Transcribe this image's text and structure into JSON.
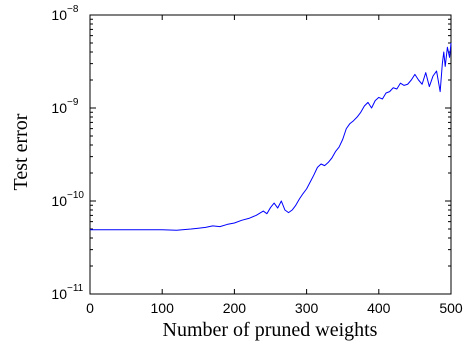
{
  "chart_data": {
    "type": "line",
    "xlabel": "Number of pruned weights",
    "ylabel": "Test error",
    "xlim": [
      0,
      500
    ],
    "ylim": [
      1e-11,
      1e-08
    ],
    "yscale": "log",
    "grid": false,
    "x_ticks": [
      {
        "value": 0,
        "label": "0"
      },
      {
        "value": 100,
        "label": "100"
      },
      {
        "value": 200,
        "label": "200"
      },
      {
        "value": 300,
        "label": "300"
      },
      {
        "value": 400,
        "label": "400"
      },
      {
        "value": 500,
        "label": "500"
      }
    ],
    "y_ticks": [
      {
        "value": 1e-11,
        "base": "10",
        "exp": "−11"
      },
      {
        "value": 1e-10,
        "base": "10",
        "exp": "−10"
      },
      {
        "value": 1e-09,
        "base": "10",
        "exp": "−9"
      },
      {
        "value": 1e-08,
        "base": "10",
        "exp": "−8"
      }
    ],
    "series": [
      {
        "color": "#0000ff",
        "x": [
          0,
          20,
          40,
          60,
          80,
          100,
          120,
          140,
          150,
          160,
          170,
          180,
          190,
          200,
          210,
          220,
          230,
          240,
          245,
          250,
          255,
          260,
          265,
          270,
          275,
          280,
          285,
          290,
          295,
          300,
          305,
          310,
          315,
          320,
          325,
          330,
          335,
          340,
          345,
          350,
          355,
          360,
          365,
          370,
          375,
          380,
          385,
          390,
          395,
          400,
          405,
          410,
          415,
          420,
          425,
          430,
          435,
          440,
          445,
          450,
          455,
          460,
          465,
          470,
          475,
          480,
          485,
          488,
          490,
          492,
          495,
          498,
          500
        ],
        "y": [
          4.9e-11,
          4.9e-11,
          4.9e-11,
          4.9e-11,
          4.9e-11,
          4.9e-11,
          4.85e-11,
          5e-11,
          5.1e-11,
          5.2e-11,
          5.4e-11,
          5.3e-11,
          5.6e-11,
          5.8e-11,
          6.2e-11,
          6.5e-11,
          7e-11,
          7.8e-11,
          7.3e-11,
          8.5e-11,
          9.5e-11,
          8.4e-11,
          1e-10,
          8e-11,
          7.5e-11,
          8e-11,
          9e-11,
          1.05e-10,
          1.2e-10,
          1.35e-10,
          1.6e-10,
          1.9e-10,
          2.3e-10,
          2.5e-10,
          2.4e-10,
          2.6e-10,
          2.9e-10,
          3.4e-10,
          3.8e-10,
          4.6e-10,
          6e-10,
          6.8e-10,
          7.3e-10,
          8e-10,
          9e-10,
          1.05e-09,
          1.15e-09,
          1e-09,
          1.2e-09,
          1.3e-09,
          1.25e-09,
          1.45e-09,
          1.5e-09,
          1.65e-09,
          1.6e-09,
          1.85e-09,
          1.75e-09,
          1.8e-09,
          2e-09,
          2.3e-09,
          2e-09,
          1.8e-09,
          2.4e-09,
          1.7e-09,
          2.2e-09,
          2.5e-09,
          1.5e-09,
          3e-09,
          4e-09,
          2.8e-09,
          4.5e-09,
          3.5e-09,
          5e-09
        ]
      }
    ]
  }
}
